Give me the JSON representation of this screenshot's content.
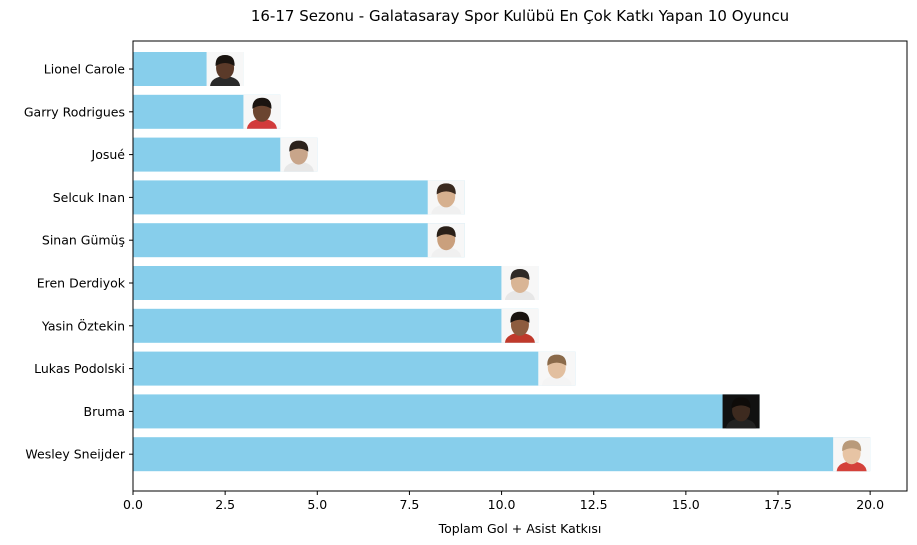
{
  "chart_data": {
    "type": "bar",
    "orientation": "horizontal",
    "title": "16-17 Sezonu - Galatasaray Spor Kulübü En Çok Katkı Yapan 10 Oyuncu",
    "xlabel": "Toplam Gol + Asist Katkısı",
    "ylabel": "",
    "xlim": [
      0,
      21
    ],
    "xticks": [
      "0.0",
      "2.5",
      "5.0",
      "7.5",
      "10.0",
      "12.5",
      "15.0",
      "17.5",
      "20.0"
    ],
    "categories": [
      "Lionel Carole",
      "Garry Rodrigues",
      "Josué",
      "Selcuk Inan",
      "Sinan Gümüş",
      "Eren Derdiyok",
      "Yasin Öztekin",
      "Lukas Podolski",
      "Bruma",
      "Wesley Sneijder"
    ],
    "values": [
      3,
      4,
      5,
      9,
      9,
      11,
      11,
      12,
      17,
      20
    ],
    "bar_color": "#87ceeb",
    "grid": false,
    "legend": "none",
    "annotations": "player photo at the end of each bar"
  }
}
